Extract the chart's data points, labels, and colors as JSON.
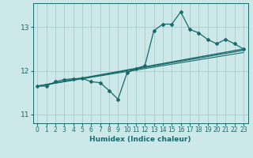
{
  "xlabel": "Humidex (Indice chaleur)",
  "ylabel": "",
  "bg_color": "#cce8e8",
  "grid_color": "#aacccc",
  "line_color": "#1a6b6b",
  "xlim": [
    -0.5,
    23.5
  ],
  "ylim": [
    10.8,
    13.55
  ],
  "yticks": [
    11,
    12,
    13
  ],
  "xticks": [
    0,
    1,
    2,
    3,
    4,
    5,
    6,
    7,
    8,
    9,
    10,
    11,
    12,
    13,
    14,
    15,
    16,
    17,
    18,
    19,
    20,
    21,
    22,
    23
  ],
  "series1_x": [
    0,
    1,
    2,
    3,
    4,
    5,
    6,
    7,
    8,
    9,
    10,
    11,
    12,
    13,
    14,
    15,
    16,
    17,
    18,
    19,
    20,
    21,
    22,
    23
  ],
  "series1_y": [
    11.65,
    11.65,
    11.75,
    11.8,
    11.82,
    11.83,
    11.75,
    11.73,
    11.55,
    11.35,
    11.95,
    12.05,
    12.12,
    12.92,
    13.07,
    13.07,
    13.35,
    12.95,
    12.87,
    12.72,
    12.62,
    12.72,
    12.62,
    12.5
  ],
  "series2_x": [
    0,
    23
  ],
  "series2_y": [
    11.65,
    12.5
  ],
  "series3_x": [
    0,
    23
  ],
  "series3_y": [
    11.65,
    12.47
  ],
  "series4_x": [
    0,
    23
  ],
  "series4_y": [
    11.65,
    12.42
  ]
}
